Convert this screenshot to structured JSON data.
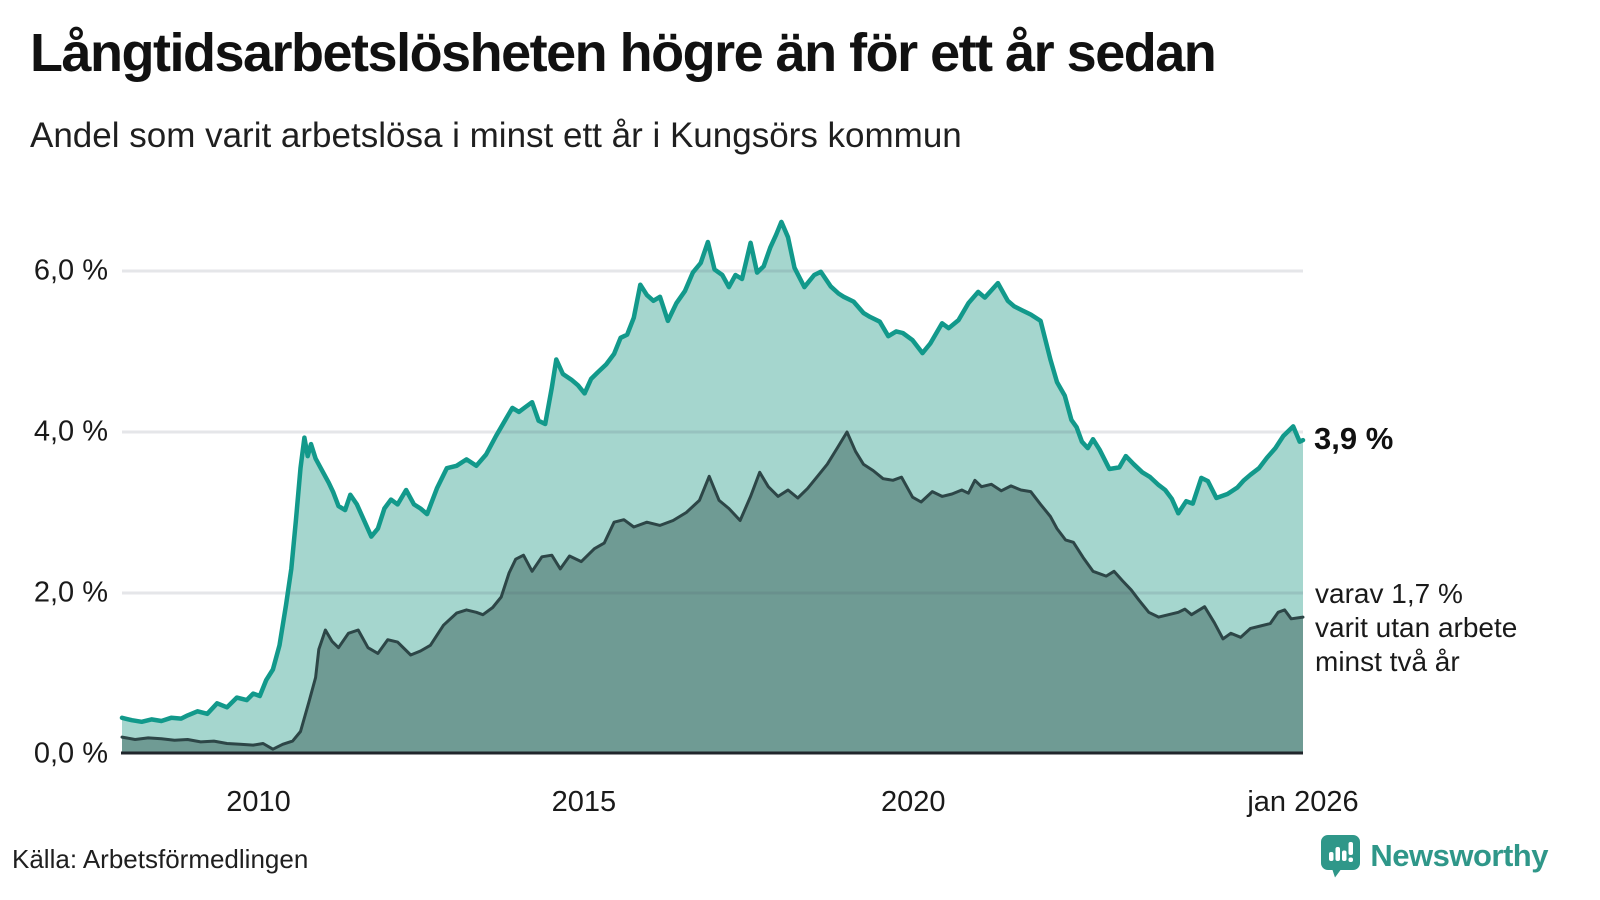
{
  "header": {
    "title": "Långtidsarbetslösheten högre än för ett år sedan",
    "subtitle": "Andel som varit arbetslösa i minst ett år i Kungsörs kommun"
  },
  "annotations": {
    "end_value_primary": "3,9 %",
    "end_value_primary_anchor": 3.9,
    "end_note_lines": [
      "varav 1,7 %",
      "varit utan arbete",
      "minst två år"
    ],
    "end_note_anchor": 1.7
  },
  "footer": {
    "source": "Källa: Arbetsförmedlingen",
    "brand": "Newsworthy"
  },
  "colors": {
    "accent_teal_line": "#12998b",
    "light_fill": "#a5d6ce",
    "dark_fill": "#6f9b94",
    "dark_line": "#2d4647",
    "gridline": "rgba(70,80,100,0.14)",
    "axis_line": "#20262b",
    "brand_teal": "#2f9789"
  },
  "chart_data": {
    "type": "area",
    "title": "Långtidsarbetslösheten högre än för ett år sedan",
    "subtitle": "Andel som varit arbetslösa i minst ett år i Kungsörs kommun",
    "xlabel": "",
    "ylabel": "",
    "unit": "%",
    "grid": true,
    "legend_position": "direct-labels-right",
    "x_range": [
      2008,
      2026.08
    ],
    "y_range": [
      0,
      7.2
    ],
    "y_ticks": [
      {
        "label": "0,0 %",
        "value": 0
      },
      {
        "label": "2,0 %",
        "value": 2
      },
      {
        "label": "4,0 %",
        "value": 4
      },
      {
        "label": "6,0 %",
        "value": 6
      }
    ],
    "x_ticks": [
      {
        "label": "2010",
        "t": 2010.08
      },
      {
        "label": "2015",
        "t": 2015.04
      },
      {
        "label": "2020",
        "t": 2020.06
      },
      {
        "label": "jan 2026",
        "t": 2026.0
      }
    ],
    "series": [
      {
        "name": "Arbetslösa minst ett år",
        "end_label": "3,9 %",
        "line_color": "#12998b",
        "fill_color": "#a5d6ce",
        "line_width": 4.5,
        "points": [
          [
            2008.0,
            0.45
          ],
          [
            2008.15,
            0.42
          ],
          [
            2008.3,
            0.4
          ],
          [
            2008.45,
            0.43
          ],
          [
            2008.6,
            0.41
          ],
          [
            2008.75,
            0.45
          ],
          [
            2008.9,
            0.44
          ],
          [
            2009.0,
            0.48
          ],
          [
            2009.15,
            0.53
          ],
          [
            2009.3,
            0.5
          ],
          [
            2009.45,
            0.63
          ],
          [
            2009.6,
            0.58
          ],
          [
            2009.75,
            0.7
          ],
          [
            2009.9,
            0.67
          ],
          [
            2010.0,
            0.75
          ],
          [
            2010.1,
            0.72
          ],
          [
            2010.2,
            0.92
          ],
          [
            2010.3,
            1.05
          ],
          [
            2010.4,
            1.35
          ],
          [
            2010.5,
            1.85
          ],
          [
            2010.58,
            2.3
          ],
          [
            2010.65,
            2.9
          ],
          [
            2010.72,
            3.55
          ],
          [
            2010.78,
            3.93
          ],
          [
            2010.83,
            3.7
          ],
          [
            2010.88,
            3.85
          ],
          [
            2010.95,
            3.67
          ],
          [
            2011.05,
            3.52
          ],
          [
            2011.15,
            3.37
          ],
          [
            2011.22,
            3.25
          ],
          [
            2011.3,
            3.08
          ],
          [
            2011.4,
            3.03
          ],
          [
            2011.48,
            3.22
          ],
          [
            2011.58,
            3.1
          ],
          [
            2011.68,
            2.92
          ],
          [
            2011.8,
            2.7
          ],
          [
            2011.9,
            2.8
          ],
          [
            2012.0,
            3.05
          ],
          [
            2012.1,
            3.16
          ],
          [
            2012.2,
            3.1
          ],
          [
            2012.33,
            3.28
          ],
          [
            2012.45,
            3.1
          ],
          [
            2012.55,
            3.05
          ],
          [
            2012.65,
            2.98
          ],
          [
            2012.8,
            3.3
          ],
          [
            2012.95,
            3.55
          ],
          [
            2013.1,
            3.58
          ],
          [
            2013.25,
            3.66
          ],
          [
            2013.4,
            3.58
          ],
          [
            2013.55,
            3.72
          ],
          [
            2013.7,
            3.95
          ],
          [
            2013.85,
            4.16
          ],
          [
            2013.95,
            4.3
          ],
          [
            2014.05,
            4.25
          ],
          [
            2014.15,
            4.31
          ],
          [
            2014.25,
            4.37
          ],
          [
            2014.35,
            4.14
          ],
          [
            2014.45,
            4.1
          ],
          [
            2014.55,
            4.55
          ],
          [
            2014.62,
            4.9
          ],
          [
            2014.72,
            4.72
          ],
          [
            2014.85,
            4.65
          ],
          [
            2014.95,
            4.58
          ],
          [
            2015.05,
            4.48
          ],
          [
            2015.15,
            4.66
          ],
          [
            2015.25,
            4.74
          ],
          [
            2015.38,
            4.84
          ],
          [
            2015.5,
            4.97
          ],
          [
            2015.6,
            5.17
          ],
          [
            2015.7,
            5.21
          ],
          [
            2015.8,
            5.42
          ],
          [
            2015.9,
            5.83
          ],
          [
            2016.0,
            5.7
          ],
          [
            2016.1,
            5.63
          ],
          [
            2016.2,
            5.68
          ],
          [
            2016.32,
            5.38
          ],
          [
            2016.45,
            5.6
          ],
          [
            2016.58,
            5.75
          ],
          [
            2016.7,
            5.98
          ],
          [
            2016.82,
            6.1
          ],
          [
            2016.93,
            6.36
          ],
          [
            2017.03,
            6.02
          ],
          [
            2017.15,
            5.95
          ],
          [
            2017.25,
            5.8
          ],
          [
            2017.35,
            5.95
          ],
          [
            2017.45,
            5.9
          ],
          [
            2017.58,
            6.35
          ],
          [
            2017.68,
            5.98
          ],
          [
            2017.78,
            6.06
          ],
          [
            2017.88,
            6.29
          ],
          [
            2017.97,
            6.45
          ],
          [
            2018.05,
            6.61
          ],
          [
            2018.15,
            6.42
          ],
          [
            2018.25,
            6.04
          ],
          [
            2018.4,
            5.8
          ],
          [
            2018.55,
            5.95
          ],
          [
            2018.65,
            5.99
          ],
          [
            2018.8,
            5.81
          ],
          [
            2018.92,
            5.72
          ],
          [
            2019.0,
            5.68
          ],
          [
            2019.15,
            5.62
          ],
          [
            2019.3,
            5.48
          ],
          [
            2019.4,
            5.43
          ],
          [
            2019.55,
            5.37
          ],
          [
            2019.68,
            5.19
          ],
          [
            2019.8,
            5.25
          ],
          [
            2019.9,
            5.23
          ],
          [
            2020.05,
            5.14
          ],
          [
            2020.2,
            4.98
          ],
          [
            2020.32,
            5.1
          ],
          [
            2020.5,
            5.35
          ],
          [
            2020.6,
            5.29
          ],
          [
            2020.75,
            5.39
          ],
          [
            2020.9,
            5.6
          ],
          [
            2021.05,
            5.74
          ],
          [
            2021.15,
            5.67
          ],
          [
            2021.35,
            5.85
          ],
          [
            2021.5,
            5.63
          ],
          [
            2021.6,
            5.56
          ],
          [
            2021.72,
            5.51
          ],
          [
            2021.85,
            5.46
          ],
          [
            2022.0,
            5.38
          ],
          [
            2022.15,
            4.9
          ],
          [
            2022.25,
            4.62
          ],
          [
            2022.37,
            4.45
          ],
          [
            2022.47,
            4.15
          ],
          [
            2022.55,
            4.06
          ],
          [
            2022.63,
            3.88
          ],
          [
            2022.72,
            3.8
          ],
          [
            2022.8,
            3.91
          ],
          [
            2022.9,
            3.78
          ],
          [
            2023.05,
            3.54
          ],
          [
            2023.2,
            3.56
          ],
          [
            2023.3,
            3.7
          ],
          [
            2023.42,
            3.6
          ],
          [
            2023.55,
            3.5
          ],
          [
            2023.67,
            3.44
          ],
          [
            2023.8,
            3.34
          ],
          [
            2023.9,
            3.28
          ],
          [
            2024.0,
            3.17
          ],
          [
            2024.1,
            2.99
          ],
          [
            2024.22,
            3.14
          ],
          [
            2024.32,
            3.11
          ],
          [
            2024.45,
            3.43
          ],
          [
            2024.55,
            3.39
          ],
          [
            2024.68,
            3.18
          ],
          [
            2024.85,
            3.23
          ],
          [
            2025.0,
            3.31
          ],
          [
            2025.1,
            3.4
          ],
          [
            2025.2,
            3.47
          ],
          [
            2025.33,
            3.55
          ],
          [
            2025.45,
            3.68
          ],
          [
            2025.58,
            3.8
          ],
          [
            2025.7,
            3.95
          ],
          [
            2025.85,
            4.07
          ],
          [
            2025.95,
            3.88
          ],
          [
            2026.0,
            3.9
          ]
        ]
      },
      {
        "name": "Arbetslösa minst två år",
        "end_label": "varav 1,7 % varit utan arbete minst två år",
        "line_color": "#2d4647",
        "fill_color": "#6f9b94",
        "line_width": 3,
        "points": [
          [
            2008.0,
            0.21
          ],
          [
            2008.2,
            0.18
          ],
          [
            2008.4,
            0.2
          ],
          [
            2008.6,
            0.19
          ],
          [
            2008.8,
            0.17
          ],
          [
            2009.0,
            0.18
          ],
          [
            2009.2,
            0.15
          ],
          [
            2009.4,
            0.16
          ],
          [
            2009.6,
            0.13
          ],
          [
            2009.8,
            0.12
          ],
          [
            2010.0,
            0.11
          ],
          [
            2010.15,
            0.13
          ],
          [
            2010.3,
            0.06
          ],
          [
            2010.45,
            0.12
          ],
          [
            2010.6,
            0.16
          ],
          [
            2010.72,
            0.28
          ],
          [
            2010.85,
            0.65
          ],
          [
            2010.95,
            0.95
          ],
          [
            2011.0,
            1.3
          ],
          [
            2011.1,
            1.54
          ],
          [
            2011.2,
            1.4
          ],
          [
            2011.3,
            1.32
          ],
          [
            2011.45,
            1.5
          ],
          [
            2011.6,
            1.54
          ],
          [
            2011.75,
            1.32
          ],
          [
            2011.9,
            1.25
          ],
          [
            2012.05,
            1.42
          ],
          [
            2012.2,
            1.39
          ],
          [
            2012.4,
            1.23
          ],
          [
            2012.55,
            1.28
          ],
          [
            2012.7,
            1.35
          ],
          [
            2012.9,
            1.6
          ],
          [
            2013.1,
            1.75
          ],
          [
            2013.25,
            1.79
          ],
          [
            2013.4,
            1.76
          ],
          [
            2013.5,
            1.73
          ],
          [
            2013.65,
            1.82
          ],
          [
            2013.78,
            1.95
          ],
          [
            2013.9,
            2.25
          ],
          [
            2014.0,
            2.42
          ],
          [
            2014.12,
            2.47
          ],
          [
            2014.25,
            2.27
          ],
          [
            2014.4,
            2.45
          ],
          [
            2014.55,
            2.47
          ],
          [
            2014.68,
            2.3
          ],
          [
            2014.82,
            2.46
          ],
          [
            2015.0,
            2.39
          ],
          [
            2015.2,
            2.55
          ],
          [
            2015.35,
            2.62
          ],
          [
            2015.5,
            2.88
          ],
          [
            2015.65,
            2.91
          ],
          [
            2015.8,
            2.82
          ],
          [
            2016.0,
            2.88
          ],
          [
            2016.2,
            2.84
          ],
          [
            2016.4,
            2.9
          ],
          [
            2016.6,
            3.0
          ],
          [
            2016.8,
            3.15
          ],
          [
            2016.95,
            3.45
          ],
          [
            2017.1,
            3.15
          ],
          [
            2017.25,
            3.05
          ],
          [
            2017.42,
            2.9
          ],
          [
            2017.58,
            3.2
          ],
          [
            2017.72,
            3.5
          ],
          [
            2017.85,
            3.32
          ],
          [
            2018.0,
            3.2
          ],
          [
            2018.15,
            3.28
          ],
          [
            2018.3,
            3.18
          ],
          [
            2018.45,
            3.3
          ],
          [
            2018.6,
            3.45
          ],
          [
            2018.75,
            3.6
          ],
          [
            2018.9,
            3.8
          ],
          [
            2019.05,
            4.0
          ],
          [
            2019.18,
            3.76
          ],
          [
            2019.3,
            3.6
          ],
          [
            2019.45,
            3.52
          ],
          [
            2019.6,
            3.42
          ],
          [
            2019.75,
            3.4
          ],
          [
            2019.88,
            3.44
          ],
          [
            2020.05,
            3.19
          ],
          [
            2020.18,
            3.13
          ],
          [
            2020.35,
            3.26
          ],
          [
            2020.5,
            3.2
          ],
          [
            2020.65,
            3.23
          ],
          [
            2020.8,
            3.28
          ],
          [
            2020.9,
            3.24
          ],
          [
            2021.0,
            3.4
          ],
          [
            2021.1,
            3.32
          ],
          [
            2021.25,
            3.35
          ],
          [
            2021.4,
            3.27
          ],
          [
            2021.55,
            3.33
          ],
          [
            2021.7,
            3.28
          ],
          [
            2021.85,
            3.26
          ],
          [
            2022.0,
            3.1
          ],
          [
            2022.15,
            2.95
          ],
          [
            2022.25,
            2.8
          ],
          [
            2022.38,
            2.66
          ],
          [
            2022.5,
            2.63
          ],
          [
            2022.65,
            2.44
          ],
          [
            2022.8,
            2.27
          ],
          [
            2023.0,
            2.21
          ],
          [
            2023.12,
            2.27
          ],
          [
            2023.25,
            2.15
          ],
          [
            2023.38,
            2.04
          ],
          [
            2023.5,
            1.91
          ],
          [
            2023.65,
            1.76
          ],
          [
            2023.8,
            1.7
          ],
          [
            2023.95,
            1.73
          ],
          [
            2024.1,
            1.76
          ],
          [
            2024.2,
            1.8
          ],
          [
            2024.3,
            1.73
          ],
          [
            2024.5,
            1.83
          ],
          [
            2024.65,
            1.63
          ],
          [
            2024.78,
            1.43
          ],
          [
            2024.9,
            1.5
          ],
          [
            2025.05,
            1.45
          ],
          [
            2025.2,
            1.56
          ],
          [
            2025.35,
            1.59
          ],
          [
            2025.5,
            1.62
          ],
          [
            2025.62,
            1.76
          ],
          [
            2025.72,
            1.79
          ],
          [
            2025.82,
            1.68
          ],
          [
            2026.0,
            1.7
          ]
        ]
      }
    ]
  }
}
